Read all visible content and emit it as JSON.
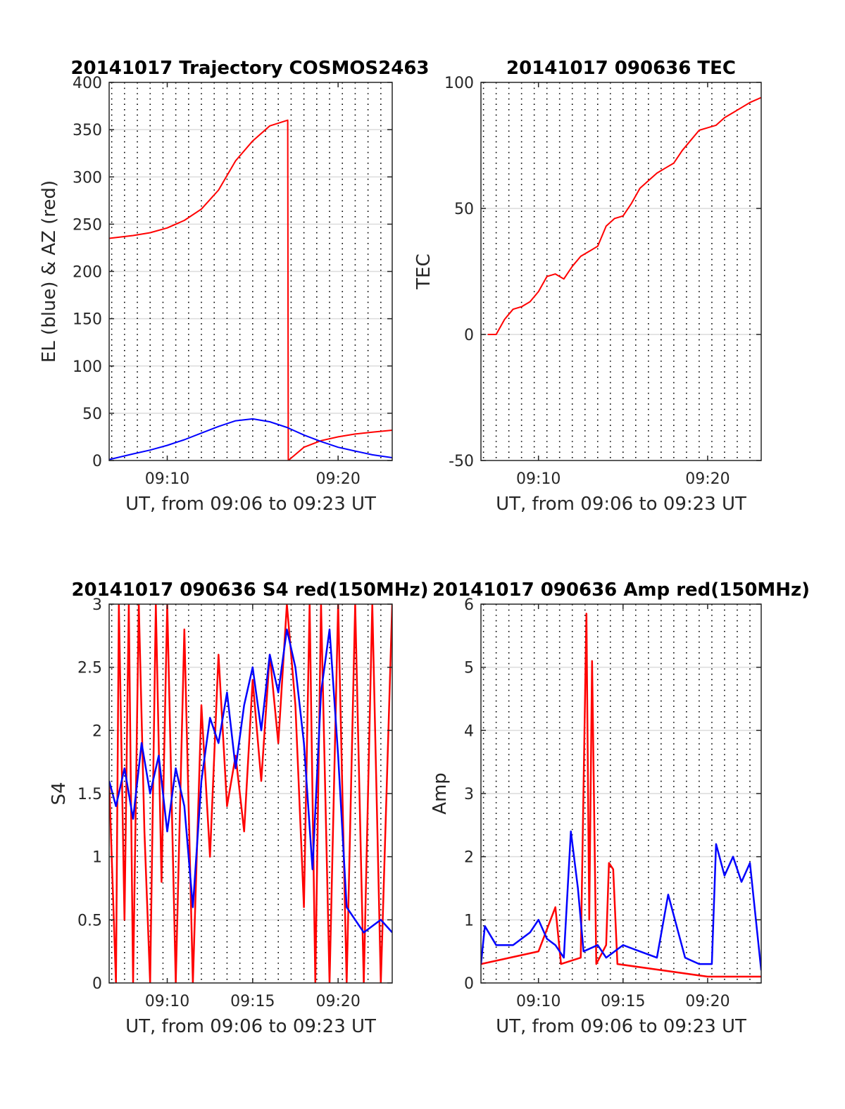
{
  "chart_data": [
    {
      "type": "line",
      "title": "20141017 Trajectory COSMOS2463",
      "xlabel": "UT, from 09:06 to 09:23 UT",
      "ylabel": "EL (blue) & AZ (red)",
      "xlim": [
        "09:06:36",
        "09:23:10"
      ],
      "ylim": [
        0,
        400
      ],
      "xtick_labels": [
        "09:10",
        "09:20"
      ],
      "ytick_labels": [
        "0",
        "50",
        "100",
        "150",
        "200",
        "250",
        "300",
        "350",
        "400"
      ],
      "grid": "horizontal solid, vertical dotted every 45 s",
      "series": [
        {
          "color": "#ff0000",
          "points": [
            [
              "09:06:36",
              235
            ],
            [
              "09:08:00",
              238
            ],
            [
              "09:09:00",
              241
            ],
            [
              "09:10:00",
              246
            ],
            [
              "09:11:00",
              254
            ],
            [
              "09:12:00",
              266
            ],
            [
              "09:13:00",
              286
            ],
            [
              "09:14:00",
              317
            ],
            [
              "09:15:00",
              338
            ],
            [
              "09:16:00",
              354
            ],
            [
              "09:17:03",
              360
            ],
            [
              "09:17:05",
              0
            ],
            [
              "09:18:00",
              14
            ],
            [
              "09:19:00",
              21
            ],
            [
              "09:20:00",
              25
            ],
            [
              "09:21:00",
              28
            ],
            [
              "09:22:00",
              30
            ],
            [
              "09:23:10",
              32
            ]
          ]
        },
        {
          "color": "#0000ff",
          "points": [
            [
              "09:06:36",
              1
            ],
            [
              "09:08:00",
              7
            ],
            [
              "09:09:00",
              11
            ],
            [
              "09:10:00",
              16
            ],
            [
              "09:11:00",
              22
            ],
            [
              "09:12:00",
              29
            ],
            [
              "09:13:00",
              36
            ],
            [
              "09:14:00",
              42
            ],
            [
              "09:15:00",
              44
            ],
            [
              "09:16:00",
              41
            ],
            [
              "09:17:00",
              35
            ],
            [
              "09:18:00",
              27
            ],
            [
              "09:19:00",
              20
            ],
            [
              "09:20:00",
              14
            ],
            [
              "09:21:00",
              10
            ],
            [
              "09:22:00",
              6
            ],
            [
              "09:23:10",
              3
            ]
          ]
        }
      ]
    },
    {
      "type": "line",
      "title": "20141017 090636 TEC",
      "xlabel": "UT, from 09:06 to 09:23 UT",
      "ylabel": "TEC",
      "xlim": [
        "09:06:36",
        "09:23:10"
      ],
      "ylim": [
        -50,
        100
      ],
      "xtick_labels": [
        "09:10",
        "09:20"
      ],
      "ytick_labels": [
        "-50",
        "0",
        "50",
        "100"
      ],
      "grid": "horizontal solid, vertical dotted every 45 s",
      "series": [
        {
          "color": "#ff0000",
          "points": [
            [
              "09:07:00",
              0
            ],
            [
              "09:07:30",
              0
            ],
            [
              "09:08:00",
              6
            ],
            [
              "09:08:30",
              10
            ],
            [
              "09:09:00",
              11
            ],
            [
              "09:09:30",
              13
            ],
            [
              "09:10:00",
              17
            ],
            [
              "09:10:30",
              23
            ],
            [
              "09:11:00",
              24
            ],
            [
              "09:11:30",
              22
            ],
            [
              "09:12:00",
              27
            ],
            [
              "09:12:30",
              31
            ],
            [
              "09:13:00",
              33
            ],
            [
              "09:13:30",
              35
            ],
            [
              "09:14:00",
              43
            ],
            [
              "09:14:30",
              46
            ],
            [
              "09:15:00",
              47
            ],
            [
              "09:15:30",
              52
            ],
            [
              "09:16:00",
              58
            ],
            [
              "09:16:30",
              61
            ],
            [
              "09:17:00",
              64
            ],
            [
              "09:17:30",
              66
            ],
            [
              "09:18:00",
              68
            ],
            [
              "09:18:30",
              73
            ],
            [
              "09:19:00",
              77
            ],
            [
              "09:19:30",
              81
            ],
            [
              "09:20:00",
              82
            ],
            [
              "09:20:30",
              83
            ],
            [
              "09:21:00",
              86
            ],
            [
              "09:21:30",
              88
            ],
            [
              "09:22:00",
              90
            ],
            [
              "09:22:30",
              92
            ],
            [
              "09:23:10",
              94
            ]
          ]
        }
      ]
    },
    {
      "type": "line",
      "title": "20141017 090636 S4 red(150MHz)",
      "xlabel": "UT, from 09:06 to 09:23 UT",
      "ylabel": "S4",
      "xlim": [
        "09:06:36",
        "09:23:10"
      ],
      "ylim": [
        0,
        3
      ],
      "xtick_labels": [
        "09:10",
        "09:15",
        "09:20"
      ],
      "ytick_labels": [
        "0",
        "0.5",
        "1",
        "1.5",
        "2",
        "2.5",
        "3"
      ],
      "grid": "horizontal solid, vertical dotted every 45 s",
      "series": [
        {
          "color": "#ff0000",
          "points": [
            [
              "09:06:36",
              1.6
            ],
            [
              "09:07:00",
              0
            ],
            [
              "09:07:10",
              3
            ],
            [
              "09:07:30",
              0.5
            ],
            [
              "09:07:45",
              3
            ],
            [
              "09:08:00",
              0
            ],
            [
              "09:08:20",
              3
            ],
            [
              "09:08:40",
              1.2
            ],
            [
              "09:09:00",
              0
            ],
            [
              "09:09:20",
              3
            ],
            [
              "09:09:40",
              0.8
            ],
            [
              "09:10:00",
              3
            ],
            [
              "09:10:30",
              0
            ],
            [
              "09:11:00",
              2.8
            ],
            [
              "09:11:30",
              0
            ],
            [
              "09:12:00",
              2.2
            ],
            [
              "09:12:30",
              1.0
            ],
            [
              "09:13:00",
              2.6
            ],
            [
              "09:13:30",
              1.4
            ],
            [
              "09:14:00",
              1.8
            ],
            [
              "09:14:30",
              1.2
            ],
            [
              "09:15:00",
              2.4
            ],
            [
              "09:15:30",
              1.6
            ],
            [
              "09:16:00",
              2.6
            ],
            [
              "09:16:30",
              1.9
            ],
            [
              "09:17:00",
              3
            ],
            [
              "09:17:30",
              2.2
            ],
            [
              "09:18:00",
              0.6
            ],
            [
              "09:18:20",
              3
            ],
            [
              "09:18:40",
              0
            ],
            [
              "09:19:00",
              3
            ],
            [
              "09:19:30",
              0
            ],
            [
              "09:20:00",
              3
            ],
            [
              "09:20:30",
              0
            ],
            [
              "09:21:00",
              3
            ],
            [
              "09:21:30",
              0
            ],
            [
              "09:22:00",
              3
            ],
            [
              "09:22:30",
              0
            ],
            [
              "09:23:10",
              3
            ]
          ]
        },
        {
          "color": "#0000ff",
          "points": [
            [
              "09:06:36",
              1.6
            ],
            [
              "09:07:00",
              1.4
            ],
            [
              "09:07:30",
              1.7
            ],
            [
              "09:08:00",
              1.3
            ],
            [
              "09:08:30",
              1.9
            ],
            [
              "09:09:00",
              1.5
            ],
            [
              "09:09:30",
              1.8
            ],
            [
              "09:10:00",
              1.2
            ],
            [
              "09:10:30",
              1.7
            ],
            [
              "09:11:00",
              1.4
            ],
            [
              "09:11:30",
              0.6
            ],
            [
              "09:12:00",
              1.6
            ],
            [
              "09:12:30",
              2.1
            ],
            [
              "09:13:00",
              1.9
            ],
            [
              "09:13:30",
              2.3
            ],
            [
              "09:14:00",
              1.7
            ],
            [
              "09:14:30",
              2.2
            ],
            [
              "09:15:00",
              2.5
            ],
            [
              "09:15:30",
              2.0
            ],
            [
              "09:16:00",
              2.6
            ],
            [
              "09:16:30",
              2.3
            ],
            [
              "09:17:00",
              2.8
            ],
            [
              "09:17:30",
              2.5
            ],
            [
              "09:18:00",
              1.9
            ],
            [
              "09:18:30",
              0.9
            ],
            [
              "09:19:00",
              2.3
            ],
            [
              "09:19:30",
              2.8
            ],
            [
              "09:20:00",
              1.8
            ],
            [
              "09:20:30",
              0.6
            ],
            [
              "09:21:00",
              0.5
            ],
            [
              "09:21:30",
              0.4
            ],
            [
              "09:22:00",
              0.45
            ],
            [
              "09:22:30",
              0.5
            ],
            [
              "09:23:10",
              0.4
            ]
          ]
        }
      ]
    },
    {
      "type": "line",
      "title": "20141017 090636 Amp red(150MHz)",
      "xlabel": "UT, from 09:06 to 09:23 UT",
      "ylabel": "Amp",
      "xlim": [
        "09:06:36",
        "09:23:10"
      ],
      "ylim": [
        0,
        6
      ],
      "xtick_labels": [
        "09:10",
        "09:15",
        "09:20"
      ],
      "ytick_labels": [
        "0",
        "1",
        "2",
        "3",
        "4",
        "5",
        "6"
      ],
      "grid": "horizontal solid, vertical dotted every 45 s",
      "series": [
        {
          "color": "#ff0000",
          "points": [
            [
              "09:06:36",
              0.3
            ],
            [
              "09:10:00",
              0.5
            ],
            [
              "09:11:00",
              1.2
            ],
            [
              "09:11:20",
              0.3
            ],
            [
              "09:12:30",
              0.4
            ],
            [
              "09:12:50",
              5.85
            ],
            [
              "09:13:00",
              1.0
            ],
            [
              "09:13:10",
              5.1
            ],
            [
              "09:13:25",
              0.3
            ],
            [
              "09:14:00",
              0.6
            ],
            [
              "09:14:10",
              1.9
            ],
            [
              "09:14:25",
              1.8
            ],
            [
              "09:14:40",
              0.3
            ],
            [
              "09:20:00",
              0.1
            ],
            [
              "09:23:10",
              0.1
            ]
          ]
        },
        {
          "color": "#0000ff",
          "points": [
            [
              "09:06:36",
              0.3
            ],
            [
              "09:06:50",
              0.9
            ],
            [
              "09:07:30",
              0.6
            ],
            [
              "09:08:30",
              0.6
            ],
            [
              "09:09:30",
              0.8
            ],
            [
              "09:10:00",
              1.0
            ],
            [
              "09:10:30",
              0.7
            ],
            [
              "09:11:00",
              0.6
            ],
            [
              "09:11:30",
              0.4
            ],
            [
              "09:11:55",
              2.4
            ],
            [
              "09:12:20",
              1.5
            ],
            [
              "09:12:40",
              0.5
            ],
            [
              "09:13:30",
              0.6
            ],
            [
              "09:14:00",
              0.4
            ],
            [
              "09:15:00",
              0.6
            ],
            [
              "09:16:00",
              0.5
            ],
            [
              "09:17:00",
              0.4
            ],
            [
              "09:17:40",
              1.4
            ],
            [
              "09:18:10",
              0.9
            ],
            [
              "09:18:40",
              0.4
            ],
            [
              "09:19:30",
              0.3
            ],
            [
              "09:20:15",
              0.3
            ],
            [
              "09:20:30",
              2.2
            ],
            [
              "09:21:00",
              1.7
            ],
            [
              "09:21:30",
              2.0
            ],
            [
              "09:22:00",
              1.6
            ],
            [
              "09:22:30",
              1.9
            ],
            [
              "09:23:10",
              0.2
            ]
          ]
        }
      ]
    }
  ]
}
